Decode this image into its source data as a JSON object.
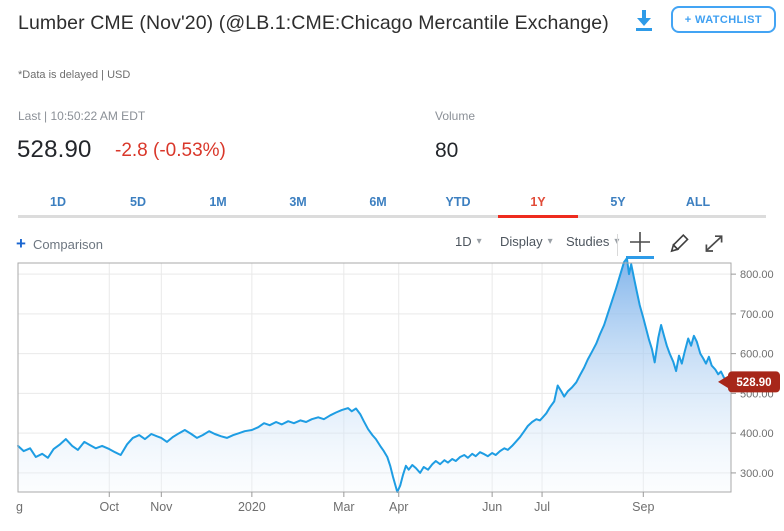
{
  "header": {
    "title": "Lumber CME (Nov'20) (@LB.1:CME:Chicago Mercantile Exchange)",
    "subtitle": "*Data is delayed | USD",
    "watchlist_label": "+ WATCHLIST"
  },
  "quote": {
    "last_label": "Last | 10:50:22 AM EDT",
    "price": "528.90",
    "change": "-2.8 (-0.53%)",
    "volume_label": "Volume",
    "volume_value": "80"
  },
  "range_tabs": {
    "items": [
      "1D",
      "5D",
      "1M",
      "3M",
      "6M",
      "YTD",
      "1Y",
      "5Y",
      "ALL"
    ],
    "active": "1Y"
  },
  "toolbar": {
    "comparison_label": "Comparison",
    "interval_label": "1D",
    "display_label": "Display",
    "studies_label": "Studies"
  },
  "colors": {
    "accent_blue": "#3fa0f2",
    "tab_blue": "#3c7fc0",
    "tab_active_red": "#e14b38",
    "tab_bar_red": "#ee2b1e",
    "change_red": "#d9372a",
    "line_blue": "#1e9de3",
    "area_top": "rgba(122,176,234,0.9)",
    "area_bottom": "rgba(242,248,253,0.25)",
    "badge_red": "#a7271a",
    "grid": "#e9e9e9",
    "plot_border": "#a9a9a9",
    "axis_text": "#6f6f6f"
  },
  "chart_data": {
    "type": "area",
    "title": "Lumber CME (Nov'20) 1Y daily price",
    "interval": "1D",
    "range": "1Y",
    "grid": true,
    "legend_position": "none",
    "ylim": [
      252,
      828
    ],
    "y_ticks": [
      {
        "value": 800,
        "label": "800.00"
      },
      {
        "value": 700,
        "label": "700.00"
      },
      {
        "value": 600,
        "label": "600.00"
      },
      {
        "value": 500,
        "label": "500.00"
      },
      {
        "value": 400,
        "label": "400.00"
      },
      {
        "value": 300,
        "label": "300.00"
      }
    ],
    "x_ticks": [
      {
        "label": "g",
        "f": 0
      },
      {
        "label": "Oct",
        "f": 0.128
      },
      {
        "label": "Nov",
        "f": 0.201
      },
      {
        "label": "2020",
        "f": 0.328
      },
      {
        "label": "Mar",
        "f": 0.457
      },
      {
        "label": "Apr",
        "f": 0.534
      },
      {
        "label": "Jun",
        "f": 0.665
      },
      {
        "label": "Jul",
        "f": 0.735
      },
      {
        "label": "Sep",
        "f": 0.877
      }
    ],
    "last_price": 528.9,
    "last_price_label": "528.90",
    "series": [
      {
        "name": "Lumber CME (Nov'20)",
        "points": [
          [
            0,
            368
          ],
          [
            0.008,
            355
          ],
          [
            0.017,
            362
          ],
          [
            0.025,
            340
          ],
          [
            0.034,
            348
          ],
          [
            0.042,
            338
          ],
          [
            0.05,
            360
          ],
          [
            0.059,
            372
          ],
          [
            0.067,
            385
          ],
          [
            0.076,
            368
          ],
          [
            0.084,
            358
          ],
          [
            0.093,
            378
          ],
          [
            0.101,
            370
          ],
          [
            0.109,
            362
          ],
          [
            0.118,
            368
          ],
          [
            0.128,
            360
          ],
          [
            0.136,
            352
          ],
          [
            0.144,
            345
          ],
          [
            0.153,
            372
          ],
          [
            0.161,
            388
          ],
          [
            0.17,
            395
          ],
          [
            0.178,
            385
          ],
          [
            0.187,
            398
          ],
          [
            0.195,
            392
          ],
          [
            0.201,
            388
          ],
          [
            0.209,
            378
          ],
          [
            0.217,
            390
          ],
          [
            0.226,
            400
          ],
          [
            0.234,
            408
          ],
          [
            0.243,
            398
          ],
          [
            0.251,
            388
          ],
          [
            0.259,
            395
          ],
          [
            0.268,
            405
          ],
          [
            0.276,
            398
          ],
          [
            0.285,
            392
          ],
          [
            0.293,
            388
          ],
          [
            0.302,
            395
          ],
          [
            0.31,
            400
          ],
          [
            0.318,
            405
          ],
          [
            0.328,
            408
          ],
          [
            0.337,
            415
          ],
          [
            0.345,
            425
          ],
          [
            0.353,
            420
          ],
          [
            0.362,
            428
          ],
          [
            0.37,
            422
          ],
          [
            0.379,
            430
          ],
          [
            0.387,
            425
          ],
          [
            0.396,
            432
          ],
          [
            0.404,
            428
          ],
          [
            0.412,
            435
          ],
          [
            0.421,
            440
          ],
          [
            0.429,
            435
          ],
          [
            0.438,
            445
          ],
          [
            0.446,
            452
          ],
          [
            0.454,
            458
          ],
          [
            0.463,
            463
          ],
          [
            0.468,
            455
          ],
          [
            0.474,
            462
          ],
          [
            0.48,
            448
          ],
          [
            0.485,
            430
          ],
          [
            0.491,
            410
          ],
          [
            0.497,
            395
          ],
          [
            0.502,
            385
          ],
          [
            0.508,
            368
          ],
          [
            0.513,
            355
          ],
          [
            0.518,
            340
          ],
          [
            0.522,
            318
          ],
          [
            0.526,
            290
          ],
          [
            0.532,
            252
          ],
          [
            0.536,
            268
          ],
          [
            0.54,
            295
          ],
          [
            0.544,
            318
          ],
          [
            0.548,
            308
          ],
          [
            0.553,
            320
          ],
          [
            0.558,
            312
          ],
          [
            0.564,
            300
          ],
          [
            0.569,
            315
          ],
          [
            0.575,
            308
          ],
          [
            0.581,
            322
          ],
          [
            0.586,
            330
          ],
          [
            0.592,
            322
          ],
          [
            0.598,
            332
          ],
          [
            0.603,
            326
          ],
          [
            0.609,
            335
          ],
          [
            0.614,
            330
          ],
          [
            0.62,
            340
          ],
          [
            0.626,
            345
          ],
          [
            0.631,
            338
          ],
          [
            0.637,
            348
          ],
          [
            0.642,
            342
          ],
          [
            0.648,
            352
          ],
          [
            0.654,
            347
          ],
          [
            0.659,
            342
          ],
          [
            0.665,
            350
          ],
          [
            0.67,
            345
          ],
          [
            0.676,
            355
          ],
          [
            0.682,
            362
          ],
          [
            0.687,
            358
          ],
          [
            0.693,
            368
          ],
          [
            0.698,
            378
          ],
          [
            0.704,
            390
          ],
          [
            0.71,
            405
          ],
          [
            0.715,
            418
          ],
          [
            0.721,
            428
          ],
          [
            0.727,
            435
          ],
          [
            0.732,
            432
          ],
          [
            0.735,
            438
          ],
          [
            0.741,
            450
          ],
          [
            0.746,
            465
          ],
          [
            0.752,
            480
          ],
          [
            0.757,
            520
          ],
          [
            0.762,
            505
          ],
          [
            0.766,
            492
          ],
          [
            0.771,
            505
          ],
          [
            0.777,
            515
          ],
          [
            0.783,
            528
          ],
          [
            0.788,
            545
          ],
          [
            0.794,
            565
          ],
          [
            0.799,
            585
          ],
          [
            0.805,
            605
          ],
          [
            0.811,
            625
          ],
          [
            0.816,
            648
          ],
          [
            0.822,
            672
          ],
          [
            0.827,
            700
          ],
          [
            0.833,
            732
          ],
          [
            0.839,
            765
          ],
          [
            0.844,
            795
          ],
          [
            0.85,
            830
          ],
          [
            0.854,
            840
          ],
          [
            0.857,
            800
          ],
          [
            0.86,
            825
          ],
          [
            0.864,
            790
          ],
          [
            0.868,
            755
          ],
          [
            0.872,
            722
          ],
          [
            0.877,
            690
          ],
          [
            0.881,
            662
          ],
          [
            0.885,
            635
          ],
          [
            0.889,
            612
          ],
          [
            0.893,
            578
          ],
          [
            0.898,
            640
          ],
          [
            0.902,
            672
          ],
          [
            0.906,
            645
          ],
          [
            0.91,
            620
          ],
          [
            0.914,
            600
          ],
          [
            0.919,
            580
          ],
          [
            0.923,
            556
          ],
          [
            0.927,
            595
          ],
          [
            0.931,
            575
          ],
          [
            0.935,
            605
          ],
          [
            0.94,
            638
          ],
          [
            0.944,
            620
          ],
          [
            0.948,
            645
          ],
          [
            0.952,
            630
          ],
          [
            0.957,
            600
          ],
          [
            0.961,
            588
          ],
          [
            0.965,
            575
          ],
          [
            0.969,
            592
          ],
          [
            0.973,
            570
          ],
          [
            0.978,
            560
          ],
          [
            0.982,
            548
          ],
          [
            0.986,
            555
          ],
          [
            0.99,
            540
          ],
          [
            0.994,
            534
          ],
          [
            1,
            528.9
          ]
        ]
      }
    ]
  }
}
